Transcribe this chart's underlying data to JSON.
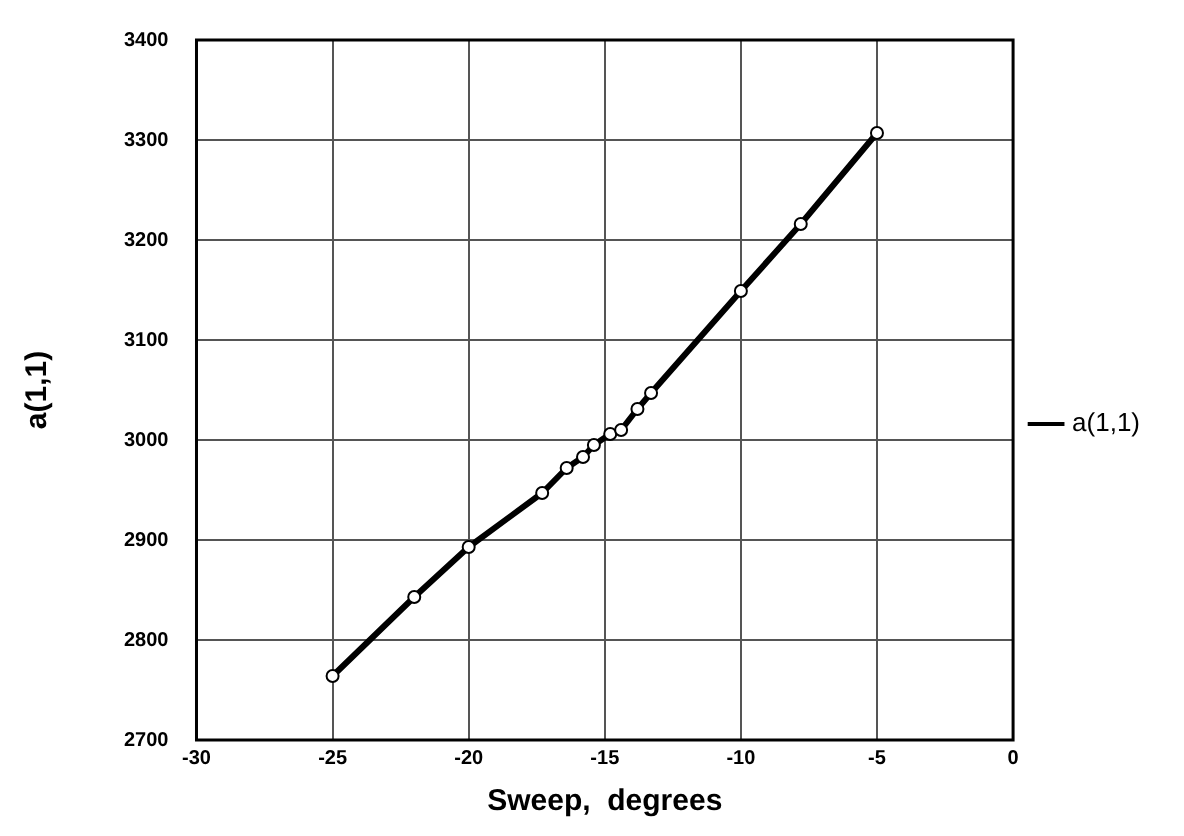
{
  "chart_data": {
    "type": "line",
    "xlabel": "Sweep,  degrees",
    "ylabel": "a(1,1)",
    "xlim": [
      -30,
      0
    ],
    "xticks": [
      -30,
      -25,
      -20,
      -15,
      -10,
      -5,
      0
    ],
    "ylim": [
      2700,
      3400
    ],
    "yticks": [
      2700,
      2800,
      2900,
      3000,
      3100,
      3200,
      3300,
      3400
    ],
    "grid": true,
    "legend": "right",
    "marker": "circle",
    "line_style": "solid",
    "series": [
      {
        "name": "a(1,1)",
        "color": "#000000",
        "x": [
          -25,
          -22,
          -20,
          -17.3,
          -16.4,
          -15.8,
          -15.4,
          -14.8,
          -14.4,
          -13.8,
          -13.3,
          -10,
          -7.8,
          -5
        ],
        "values": [
          2764,
          2843,
          2893,
          2947,
          2972,
          2983,
          2995,
          3006,
          3010,
          3031,
          3047,
          3149,
          3216,
          3307
        ]
      }
    ]
  }
}
